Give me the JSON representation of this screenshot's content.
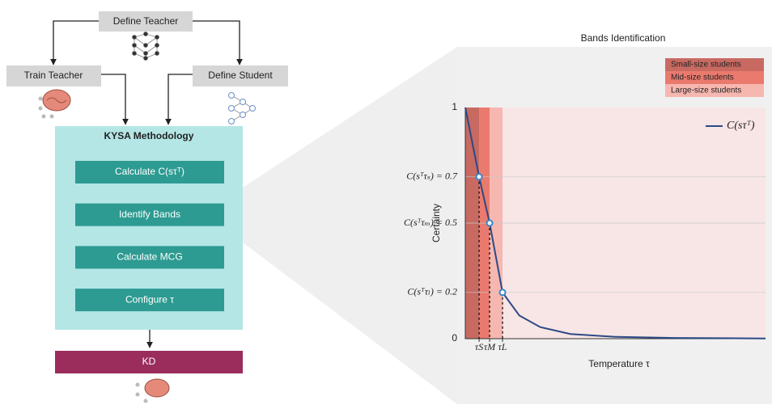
{
  "diagram": {
    "define_teacher": "Define Teacher",
    "train_teacher": "Train Teacher",
    "define_student": "Define Student",
    "methodology": {
      "title": "KYSA Methodology",
      "steps": [
        "Calculate C(sτᵀ)",
        "Identify Bands",
        "Calculate MCG",
        "Configure τ"
      ]
    },
    "kd": "KD"
  },
  "chart_data": {
    "type": "line",
    "title": "Bands Identification",
    "x_label": "Temperature τ",
    "y_label": "Certainty",
    "xlim": [
      0,
      10
    ],
    "ylim": [
      0,
      1
    ],
    "xticks": [
      {
        "value": 0.46,
        "label": "τS"
      },
      {
        "value": 0.81,
        "label": "τM"
      },
      {
        "value": 1.24,
        "label": "τL"
      }
    ],
    "yticks": [
      0,
      {
        "value": 0.2,
        "label": "C(sᵀτₗ) = 0.2"
      },
      {
        "value": 0.5,
        "label": "C(sᵀτₘ) = 0.5"
      },
      {
        "value": 0.7,
        "label": "C(sᵀτₛ) = 0.7"
      },
      1
    ],
    "grid": true,
    "series": [
      {
        "name": "C(sτᵀ)",
        "color": "#2b4a86",
        "x": [
          0,
          0.46,
          0.81,
          1.24,
          1.8,
          2.5,
          3.5,
          5,
          7,
          10
        ],
        "values": [
          1,
          0.7,
          0.5,
          0.2,
          0.1,
          0.05,
          0.02,
          0.008,
          0.003,
          0.001
        ]
      }
    ],
    "markers": {
      "color": "#3a86c8",
      "x": [
        0.46,
        0.81,
        1.24
      ],
      "values": [
        0.7,
        0.5,
        0.2
      ]
    },
    "bands": [
      {
        "name": "Small-size students",
        "color": "#c86a62",
        "range": [
          0,
          0.46
        ]
      },
      {
        "name": "Mid-size students",
        "color": "#ea7a6e",
        "range": [
          0.46,
          0.81
        ]
      },
      {
        "name": "Large-size students",
        "color": "#f6b7b0",
        "range": [
          0.81,
          1.24
        ]
      }
    ]
  }
}
